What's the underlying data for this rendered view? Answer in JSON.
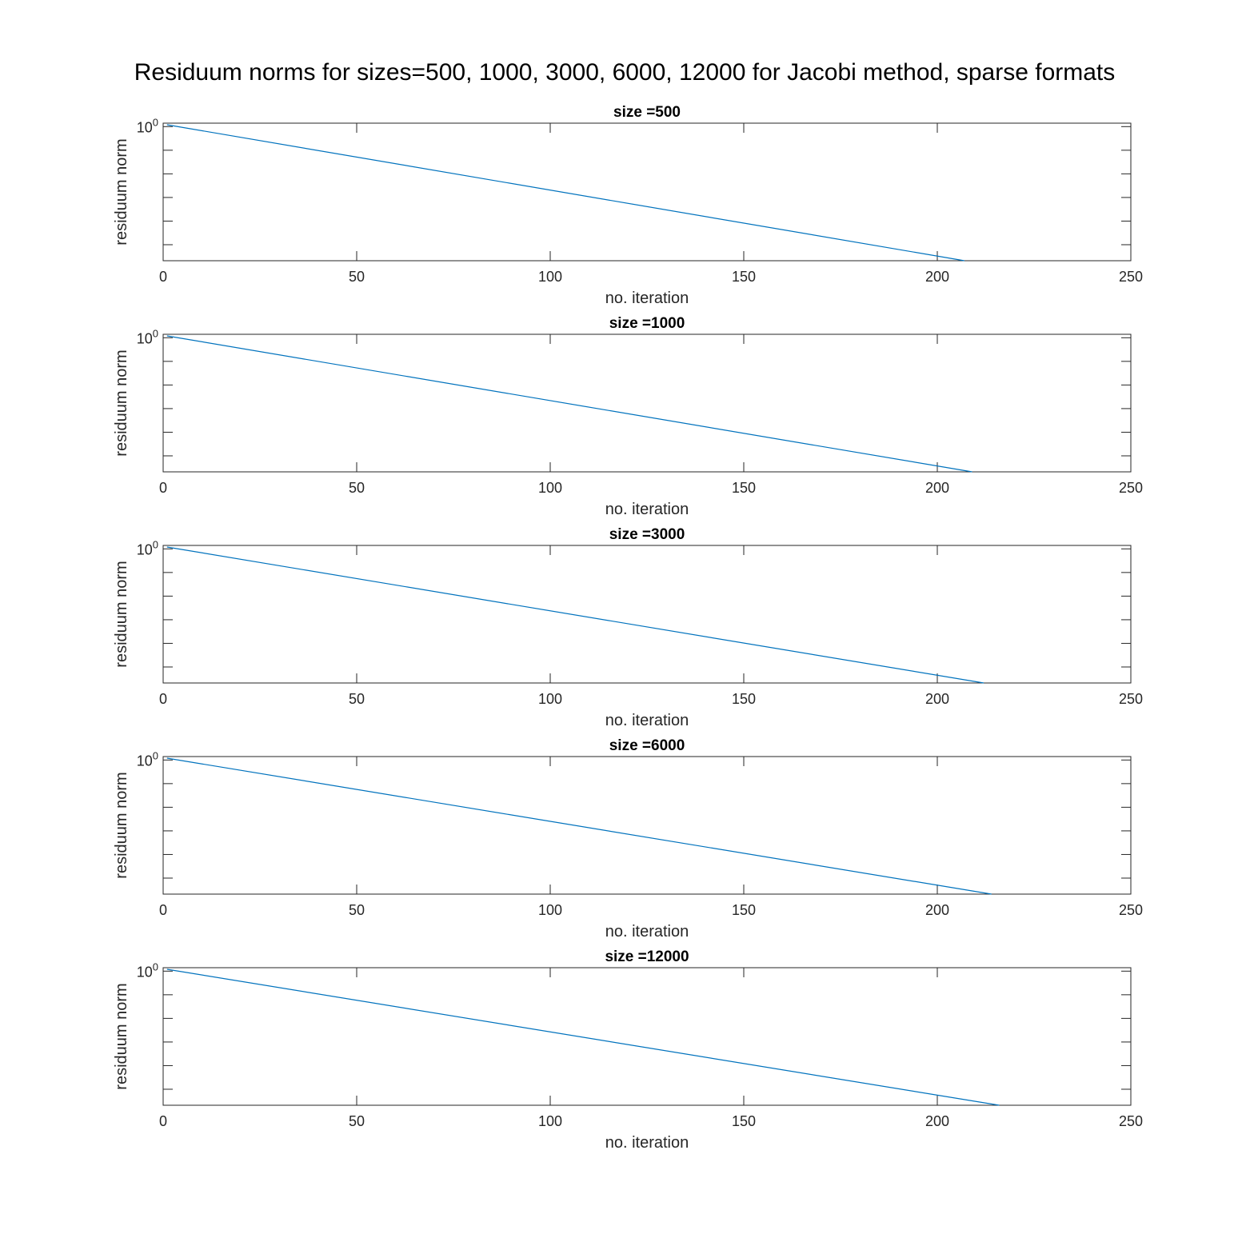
{
  "figure": {
    "title": "Residuum norms for sizes=500, 1000, 3000, 6000, 12000 for Jacobi method, sparse formats",
    "line_color": "#0072BD",
    "axis_color": "#262626"
  },
  "chart_data": [
    {
      "type": "line",
      "title": "size =500",
      "xlabel": "no. iteration",
      "ylabel": "residuum norm",
      "xlim": [
        0,
        250
      ],
      "xticks": [
        0,
        50,
        100,
        150,
        200,
        250
      ],
      "yscale": "log",
      "ylim": [
        2.1e-06,
        1.4
      ],
      "yticks": [
        1
      ],
      "ytick_labels": [
        "10^0"
      ],
      "grid": false,
      "series": [
        {
          "x": [
            1,
            207
          ],
          "y": [
            1.2,
            2.1e-06
          ]
        }
      ]
    },
    {
      "type": "line",
      "title": "size =1000",
      "xlabel": "no. iteration",
      "ylabel": "residuum norm",
      "xlim": [
        0,
        250
      ],
      "xticks": [
        0,
        50,
        100,
        150,
        200,
        250
      ],
      "yscale": "log",
      "ylim": [
        2.1e-06,
        1.4
      ],
      "yticks": [
        1
      ],
      "ytick_labels": [
        "10^0"
      ],
      "grid": false,
      "series": [
        {
          "x": [
            1,
            209
          ],
          "y": [
            1.2,
            2.1e-06
          ]
        }
      ]
    },
    {
      "type": "line",
      "title": "size =3000",
      "xlabel": "no. iteration",
      "ylabel": "residuum norm",
      "xlim": [
        0,
        250
      ],
      "xticks": [
        0,
        50,
        100,
        150,
        200,
        250
      ],
      "yscale": "log",
      "ylim": [
        2.1e-06,
        1.4
      ],
      "yticks": [
        1
      ],
      "ytick_labels": [
        "10^0"
      ],
      "grid": false,
      "series": [
        {
          "x": [
            1,
            212
          ],
          "y": [
            1.2,
            2.1e-06
          ]
        }
      ]
    },
    {
      "type": "line",
      "title": "size =6000",
      "xlabel": "no. iteration",
      "ylabel": "residuum norm",
      "xlim": [
        0,
        250
      ],
      "xticks": [
        0,
        50,
        100,
        150,
        200,
        250
      ],
      "yscale": "log",
      "ylim": [
        2.1e-06,
        1.4
      ],
      "yticks": [
        1
      ],
      "ytick_labels": [
        "10^0"
      ],
      "grid": false,
      "series": [
        {
          "x": [
            1,
            214
          ],
          "y": [
            1.2,
            2.1e-06
          ]
        }
      ]
    },
    {
      "type": "line",
      "title": "size =12000",
      "xlabel": "no. iteration",
      "ylabel": "residuum norm",
      "xlim": [
        0,
        250
      ],
      "xticks": [
        0,
        50,
        100,
        150,
        200,
        250
      ],
      "yscale": "log",
      "ylim": [
        2.1e-06,
        1.4
      ],
      "yticks": [
        1
      ],
      "ytick_labels": [
        "10^0"
      ],
      "grid": false,
      "series": [
        {
          "x": [
            1,
            216
          ],
          "y": [
            1.2,
            2.1e-06
          ]
        }
      ]
    }
  ]
}
